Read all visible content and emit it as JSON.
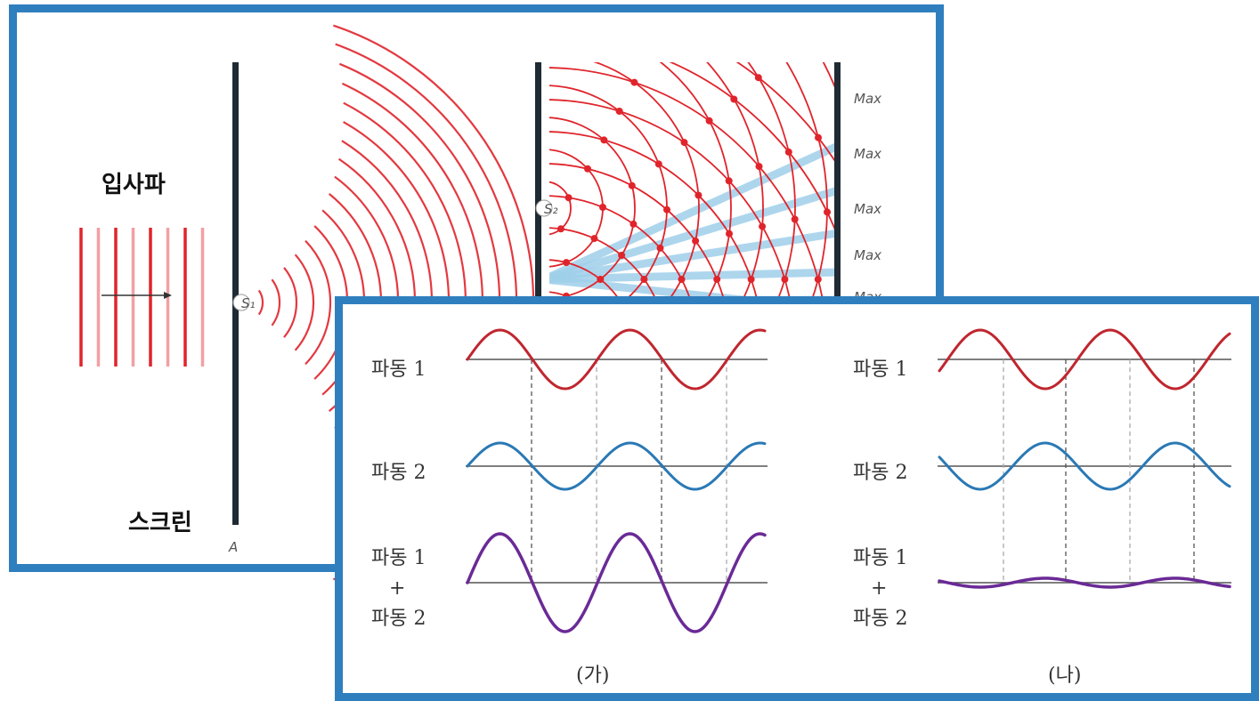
{
  "top_diagram": {
    "incident_wave_label": "입사파",
    "screen_label": "스크린",
    "screen_point_label": "A",
    "slit1_label": "S₁",
    "slit2_label": "S₂",
    "max_labels": [
      "Max",
      "Max",
      "Max",
      "Max",
      "Max"
    ],
    "colors": {
      "wave": "#e0242b",
      "beam": "#9fd0ea",
      "screen": "#1f2a33",
      "border": "#2f7fbf"
    }
  },
  "bottom_diagram": {
    "left": {
      "row1_label": "파동 1",
      "row2_label": "파동 2",
      "sum_line1": "파동 1",
      "sum_plus": "+",
      "sum_line2": "파동 2",
      "caption": "(가)"
    },
    "right": {
      "row1_label": "파동 1",
      "row2_label": "파동 2",
      "sum_line1": "파동 1",
      "sum_plus": "+",
      "sum_line2": "파동 2",
      "caption": "(나)"
    },
    "colors": {
      "wave1": "#c0262e",
      "wave2": "#2a79b5",
      "sum": "#6a2a96",
      "axis": "#555555"
    }
  }
}
